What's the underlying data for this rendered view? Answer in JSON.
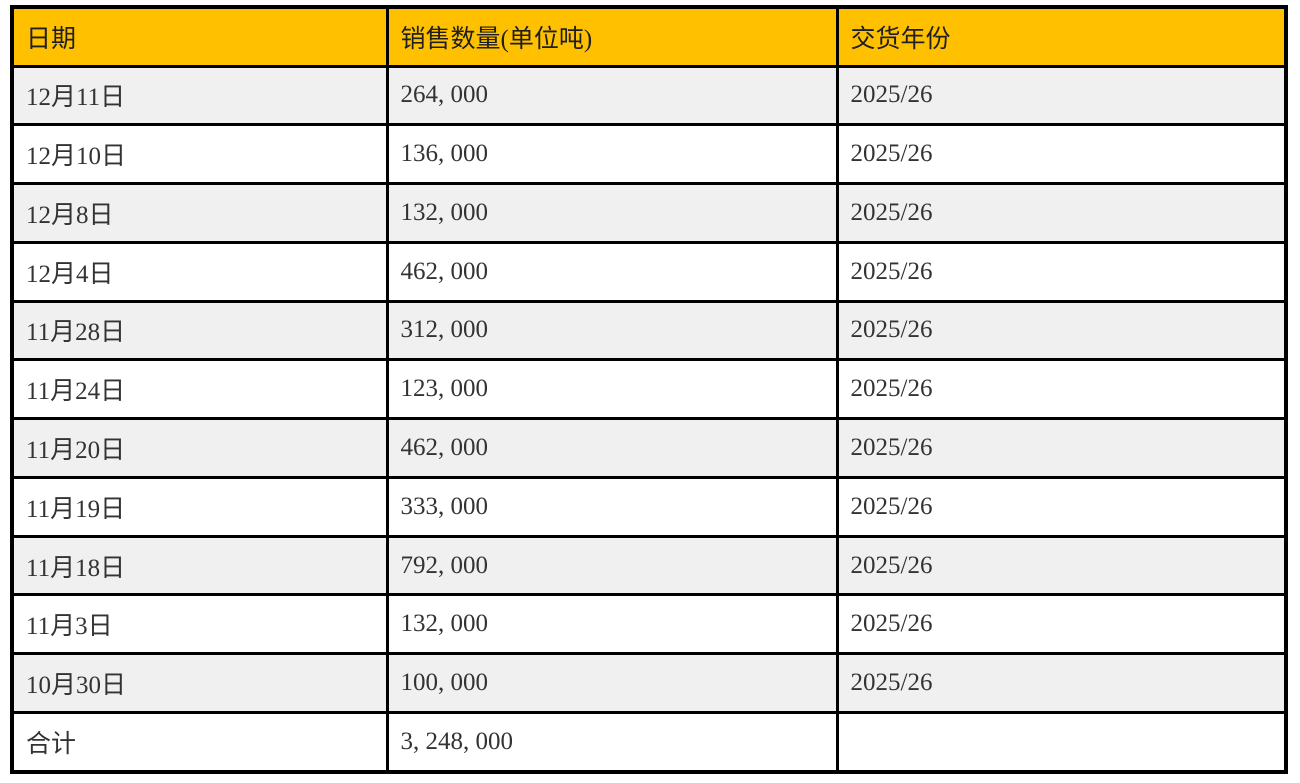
{
  "table": {
    "columns": [
      {
        "key": "date",
        "label": "日期"
      },
      {
        "key": "quantity",
        "label": "销售数量(单位吨)"
      },
      {
        "key": "year",
        "label": "交货年份"
      }
    ],
    "rows": [
      {
        "date": "12月11日",
        "quantity": "264, 000",
        "year": "2025/26"
      },
      {
        "date": "12月10日",
        "quantity": "136, 000",
        "year": "2025/26"
      },
      {
        "date": "12月8日",
        "quantity": "132, 000",
        "year": "2025/26"
      },
      {
        "date": "12月4日",
        "quantity": "462, 000",
        "year": "2025/26"
      },
      {
        "date": "11月28日",
        "quantity": "312, 000",
        "year": "2025/26"
      },
      {
        "date": "11月24日",
        "quantity": "123, 000",
        "year": "2025/26"
      },
      {
        "date": "11月20日",
        "quantity": "462, 000",
        "year": "2025/26"
      },
      {
        "date": "11月19日",
        "quantity": "333, 000",
        "year": "2025/26"
      },
      {
        "date": "11月18日",
        "quantity": "792, 000",
        "year": "2025/26"
      },
      {
        "date": "11月3日",
        "quantity": "132, 000",
        "year": "2025/26"
      },
      {
        "date": "10月30日",
        "quantity": "100, 000",
        "year": "2025/26"
      }
    ],
    "total": {
      "label": "合计",
      "quantity": "3, 248, 000",
      "year": ""
    },
    "colors": {
      "header_bg": "#FFC000",
      "header_text": "#1F1F1F",
      "row_alt_bg": "#F0F0F0",
      "row_bg": "#FFFFFF",
      "border": "#000000",
      "body_text": "#333333"
    }
  }
}
